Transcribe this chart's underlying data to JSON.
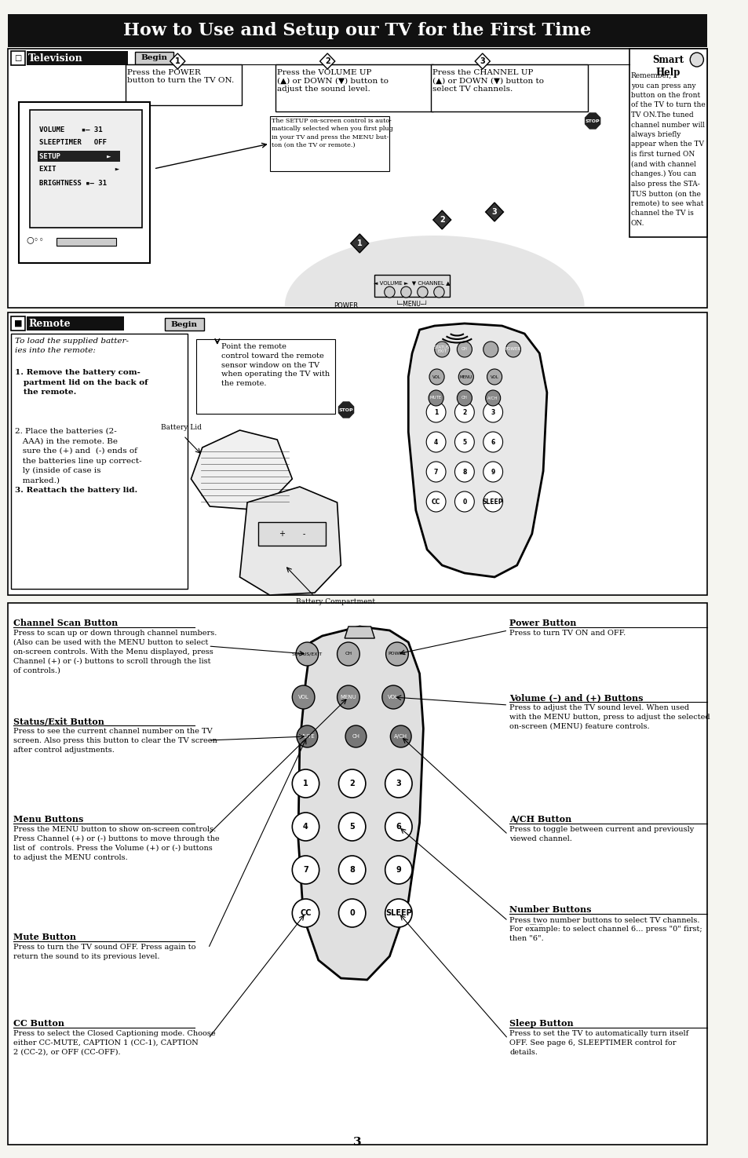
{
  "title": "How to Use and Setup our TV for the First Time",
  "bg_color": "#f5f5f0",
  "title_bg": "#1a1a1a",
  "title_color": "#ffffff",
  "section1_title": "Television",
  "section2_title": "Remote",
  "smart_help_title": "Smart\nHelp",
  "smart_help_text": "Remember,\nyou can press any\nbutton on the front\nof the TV to turn the\nTV ON.The tuned\nchannel number will\nalways briefly\nappear when the TV\nis first turned ON\n(and with channel\nchanges.) You can\nalso press the STA-\nTUS button (on the\nremote) to see what\nchannel the TV is\nON.",
  "step1_title": "Press the POWER\nbutton to turn the TV ON.",
  "step2_title": "Press the VOLUME UP\n(▲) or DOWN (▼) button to\nadjust the sound level.",
  "step3_title": "Press the CHANNEL UP\n(▲) or DOWN (▼) button to\nselect TV channels.",
  "tv_menu_lines": [
    "VOLUME    ▪– 31",
    "SLEEPTIMER   OFF",
    "SETUP           ►",
    "EXIT              ►",
    "BRIGHTNESS ▪– 31"
  ],
  "setup_note": "The SETUP on-screen control is auto-\nmatically selected when you first plug\nin your TV and press the MENU but-\nton (on the TV or remote.)",
  "remote_intro": "To load the supplied batter-\nies into the remote:",
  "remote_steps": [
    "1. Remove the battery com-\n   partment lid on the back of\n   the remote.",
    "2. Place the batteries (2-\n   AAA) in the remote. Be\n   sure the (+) and  (-) ends of\n   the batteries line up correct-\n   ly (inside of case is\n   marked.)",
    "3. Reattach the battery lid."
  ],
  "remote_point_text": "Point the remote\ncontrol toward the remote\nsensor window on the TV\nwhen operating the TV with\nthe remote.",
  "battery_lid_label": "Battery Lid",
  "battery_comp_label": "Battery Compartment",
  "channel_scan_title": "Channel Scan Button",
  "channel_scan_text": "Press to scan up or down through channel numbers.\n(Also can be used with the MENU button to select\non-screen controls. With the Menu displayed, press\nChannel (+) or (-) buttons to scroll through the list\nof controls.)",
  "status_exit_title": "Status/Exit Button",
  "status_exit_text": "Press to see the current channel number on the TV\nscreen. Also press this button to clear the TV screen\nafter control adjustments.",
  "menu_title": "Menu Buttons",
  "menu_text": "Press the MENU button to show on-screen controls.\nPress Channel (+) or (-) buttons to move through the\nlist of controls. Press the Volume (+) or (-) buttons\nto adjust the MENU controls.",
  "mute_title": "Mute Button",
  "mute_text": "Press to turn the TV sound OFF. Press again to\nreturn the sound to its previous level.",
  "cc_title": "CC Button",
  "cc_text": "Press to select the Closed Captioning mode. Choose\neither CC-MUTE, CAPTION 1 (CC-1), CAPTION\n2 (CC-2), or OFF (CC-OFF).",
  "power_btn_title": "Power Button",
  "power_btn_text": "Press to turn TV ON and OFF.",
  "volume_title": "Volume (–) and (+) Buttons",
  "volume_text": "Press to adjust the TV sound level. When used\nwith the MENU button, press to adjust the selected\non-screen (MENU) feature controls.",
  "ach_title": "A/CH Button",
  "ach_text": "Press to toggle between current and previously\nviewed channel.",
  "number_title": "Number Buttons",
  "number_text": "Press two number buttons to select TV channels.\nFor example: to select channel 6... press \"0\" first;\nthen \"6\".",
  "sleep_title": "Sleep Button",
  "sleep_text": "Press to set the TV to automatically turn itself\nOFF. See page 6, SLEEPTIMER control for\ndetails.",
  "page_number": "3"
}
